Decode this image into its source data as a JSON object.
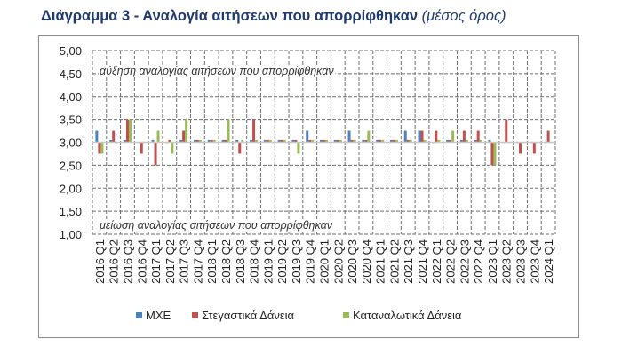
{
  "header": {
    "title_main": "Διάγραμμα 3 - Αναλογία αιτήσεων που απορρίφθηκαν",
    "title_sub": "(μέσος όρος)"
  },
  "chart_data": {
    "type": "bar",
    "baseline": 3.0,
    "ylim": [
      1.0,
      5.0
    ],
    "yticks": [
      "1,00",
      "1,50",
      "2,00",
      "2,50",
      "3,00",
      "3,50",
      "4,00",
      "4,50",
      "5,00"
    ],
    "grid": true,
    "legend_position": "bottom",
    "annotations": {
      "top": "αύξηση αναλογίας αιτήσεων που απορρίφθηκαν",
      "bottom": "μείωση αναλογίας αιτήσεων που απορρίφθηκαν"
    },
    "categories": [
      "2016 Q1",
      "2016 Q2",
      "2016 Q3",
      "2016 Q4",
      "2017 Q1",
      "2017 Q2",
      "2017 Q3",
      "2017 Q4",
      "2018 Q1",
      "2018 Q2",
      "2018 Q3",
      "2018 Q4",
      "2019 Q1",
      "2019 Q2",
      "2019 Q3",
      "2019 Q4",
      "2020 Q1",
      "2020 Q2",
      "2020 Q3",
      "2020 Q4",
      "2021 Q1",
      "2021 Q2",
      "2021 Q3",
      "2021 Q4",
      "2022 Q1",
      "2022 Q2",
      "2022 Q3",
      "2022 Q4",
      "2023 Q1",
      "2023 Q2",
      "2023 Q3",
      "2023 Q4",
      "2024 Q1"
    ],
    "series": [
      {
        "name": "ΜΧΕ",
        "color": "#4f81bd",
        "values": [
          3.25,
          3.05,
          3.05,
          3.0,
          3.05,
          3.0,
          3.05,
          3.05,
          3.05,
          3.05,
          3.05,
          3.05,
          3.05,
          3.05,
          3.05,
          3.25,
          3.05,
          3.05,
          3.25,
          3.05,
          3.05,
          3.05,
          3.25,
          3.25,
          3.0,
          3.05,
          3.05,
          3.05,
          3.05,
          3.0,
          3.0,
          3.0,
          3.0
        ]
      },
      {
        "name": "Στεγαστικά Δάνεια",
        "color": "#c0504d",
        "values": [
          2.75,
          3.25,
          3.5,
          2.75,
          2.5,
          3.05,
          3.25,
          3.05,
          3.05,
          3.05,
          2.75,
          3.5,
          3.05,
          3.05,
          3.05,
          3.05,
          3.05,
          3.05,
          3.05,
          3.05,
          3.05,
          3.05,
          3.05,
          3.25,
          3.25,
          3.05,
          3.25,
          3.25,
          2.5,
          3.5,
          2.75,
          2.75,
          3.25
        ]
      },
      {
        "name": "Καταναλωτικά Δάνεια",
        "color": "#9bbb59",
        "values": [
          2.75,
          3.0,
          3.5,
          3.0,
          3.25,
          2.75,
          3.5,
          3.05,
          3.05,
          3.5,
          3.05,
          3.05,
          3.05,
          3.05,
          2.75,
          3.05,
          3.05,
          3.05,
          3.05,
          3.25,
          3.05,
          3.05,
          3.05,
          3.05,
          3.05,
          3.25,
          3.05,
          3.05,
          2.5,
          3.0,
          3.0,
          3.0,
          3.0
        ]
      }
    ]
  }
}
